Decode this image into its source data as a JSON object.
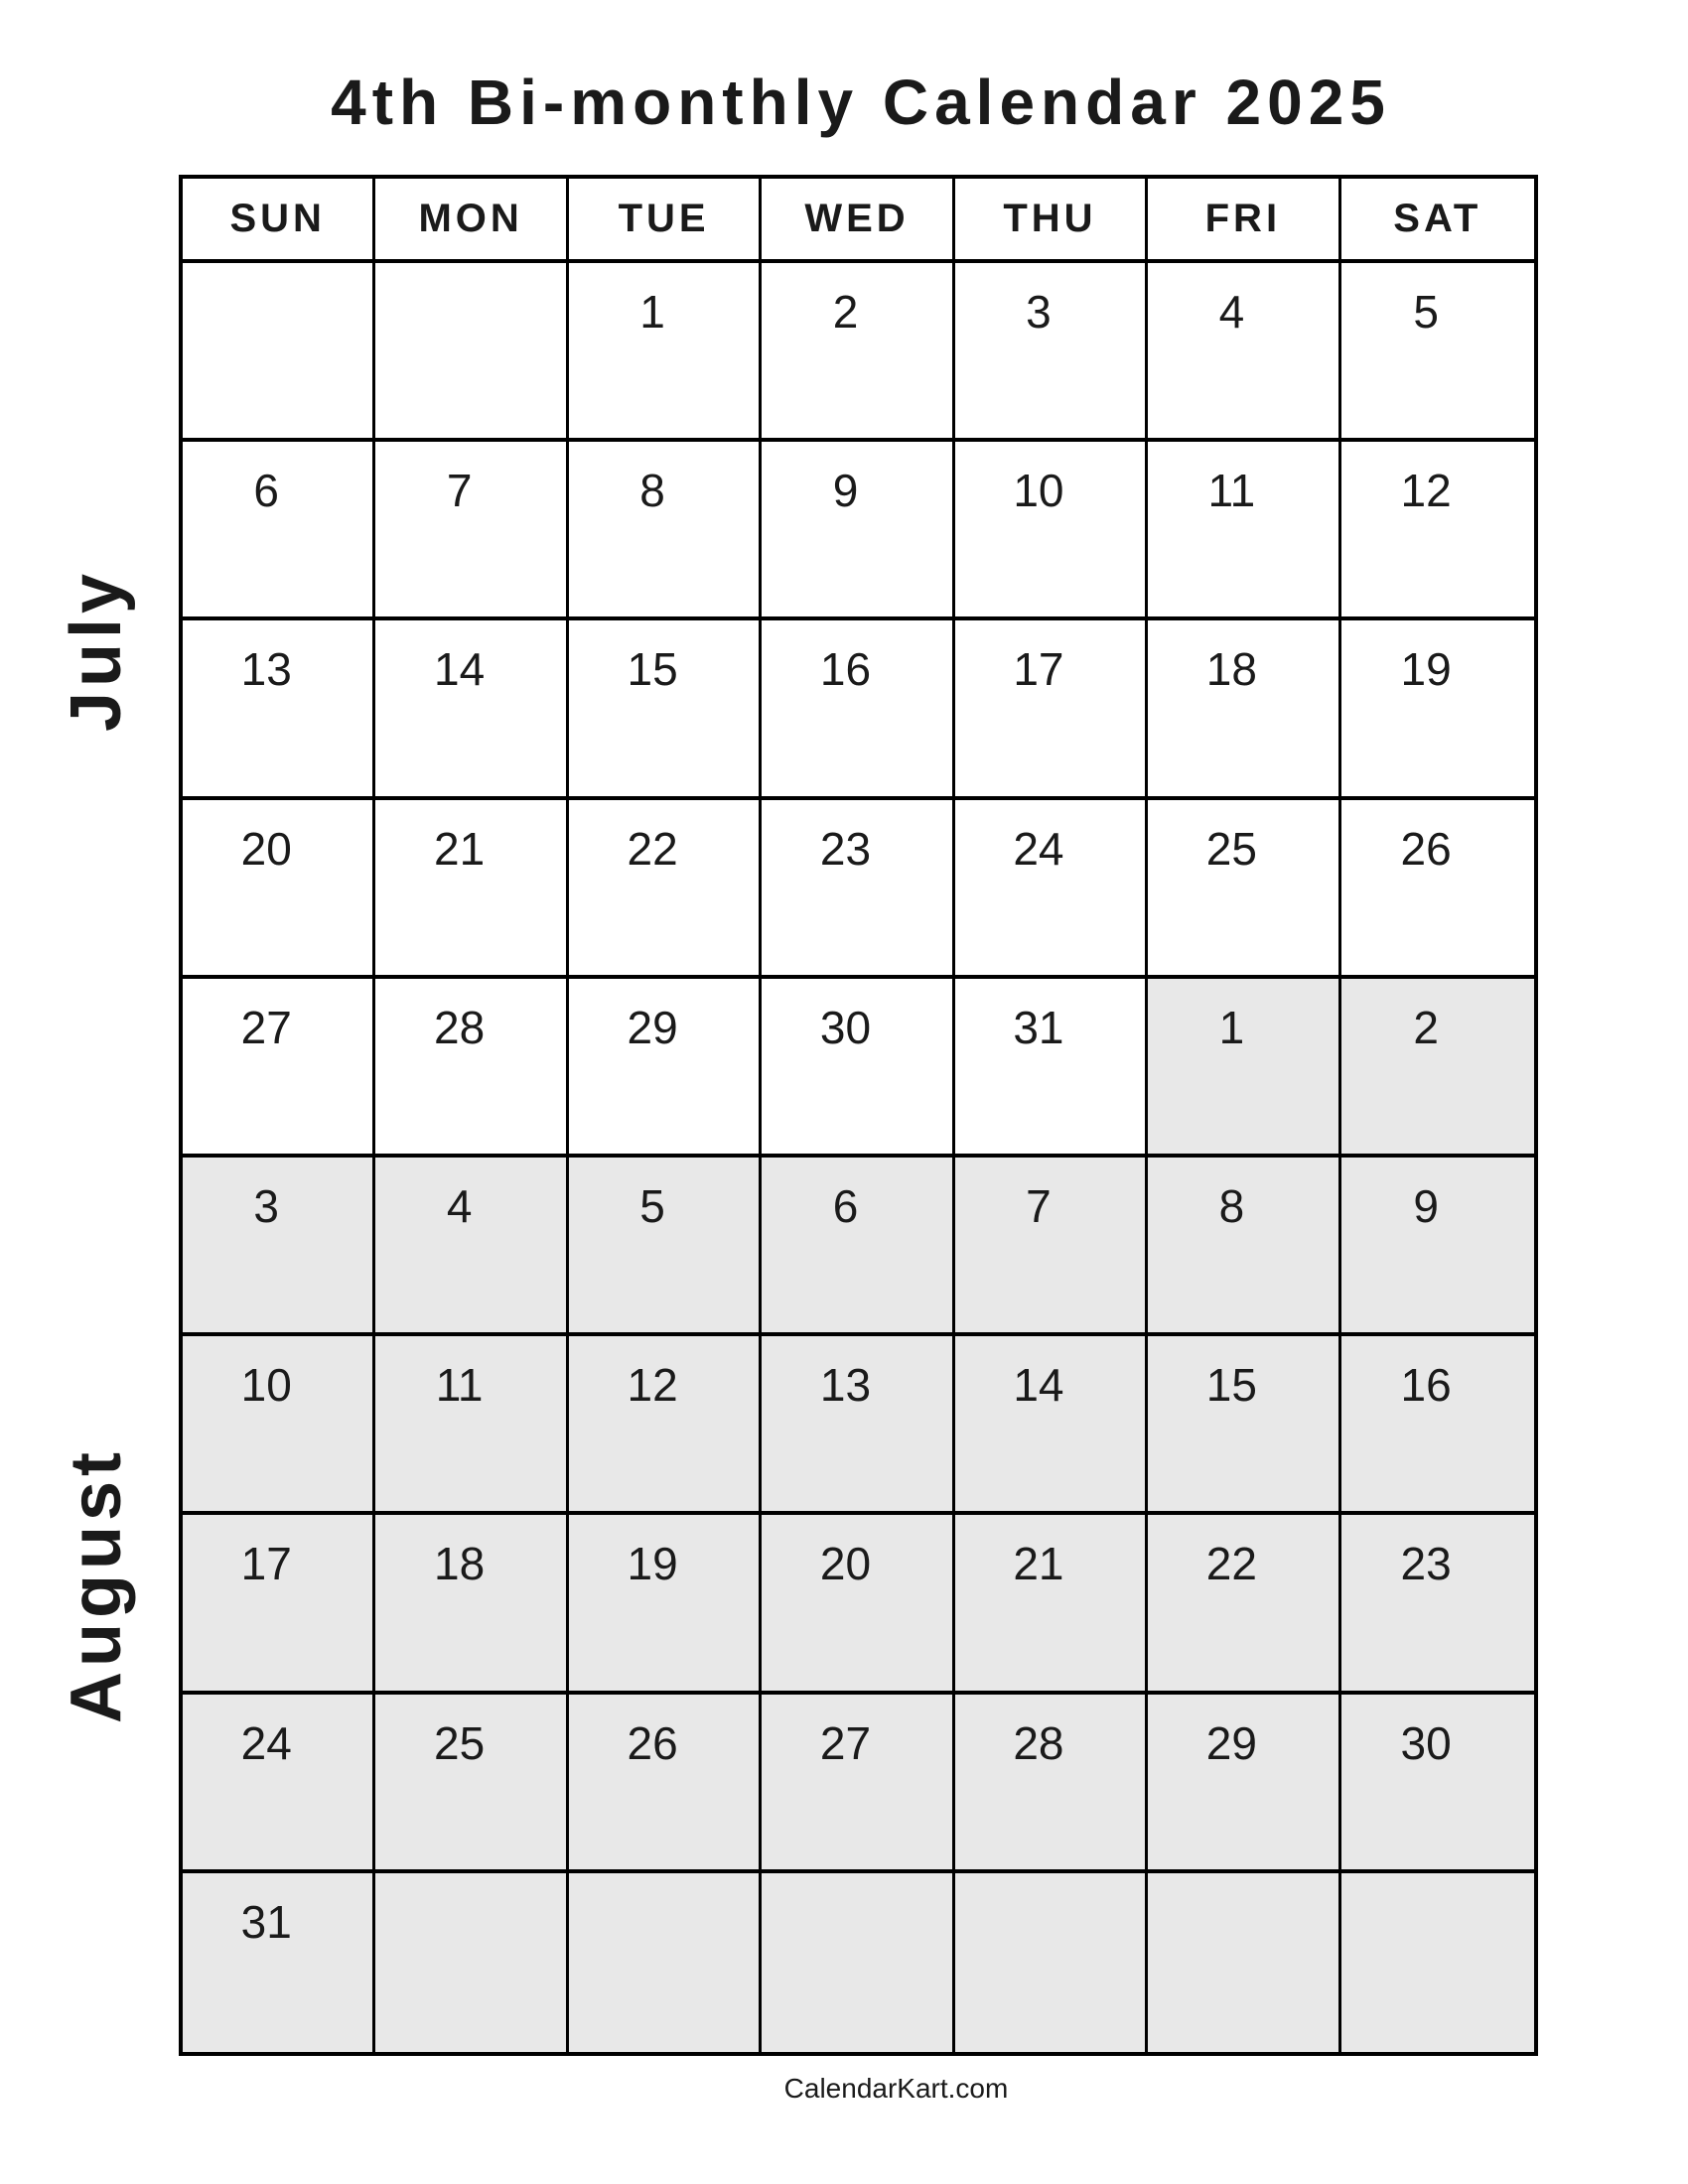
{
  "title": "4th Bi-monthly Calendar 2025",
  "months": [
    "July",
    "August"
  ],
  "weekdays": [
    "SUN",
    "MON",
    "TUE",
    "WED",
    "THU",
    "FRI",
    "SAT"
  ],
  "colors": {
    "july_bg": "#ffffff",
    "august_bg": "#e8e8e8",
    "border": "#000000"
  },
  "weeks": [
    [
      {
        "d": "",
        "m": "jul"
      },
      {
        "d": "",
        "m": "jul"
      },
      {
        "d": "1",
        "m": "jul"
      },
      {
        "d": "2",
        "m": "jul"
      },
      {
        "d": "3",
        "m": "jul"
      },
      {
        "d": "4",
        "m": "jul"
      },
      {
        "d": "5",
        "m": "jul"
      }
    ],
    [
      {
        "d": "6",
        "m": "jul"
      },
      {
        "d": "7",
        "m": "jul"
      },
      {
        "d": "8",
        "m": "jul"
      },
      {
        "d": "9",
        "m": "jul"
      },
      {
        "d": "10",
        "m": "jul"
      },
      {
        "d": "11",
        "m": "jul"
      },
      {
        "d": "12",
        "m": "jul"
      }
    ],
    [
      {
        "d": "13",
        "m": "jul"
      },
      {
        "d": "14",
        "m": "jul"
      },
      {
        "d": "15",
        "m": "jul"
      },
      {
        "d": "16",
        "m": "jul"
      },
      {
        "d": "17",
        "m": "jul"
      },
      {
        "d": "18",
        "m": "jul"
      },
      {
        "d": "19",
        "m": "jul"
      }
    ],
    [
      {
        "d": "20",
        "m": "jul"
      },
      {
        "d": "21",
        "m": "jul"
      },
      {
        "d": "22",
        "m": "jul"
      },
      {
        "d": "23",
        "m": "jul"
      },
      {
        "d": "24",
        "m": "jul"
      },
      {
        "d": "25",
        "m": "jul"
      },
      {
        "d": "26",
        "m": "jul"
      }
    ],
    [
      {
        "d": "27",
        "m": "jul"
      },
      {
        "d": "28",
        "m": "jul"
      },
      {
        "d": "29",
        "m": "jul"
      },
      {
        "d": "30",
        "m": "jul"
      },
      {
        "d": "31",
        "m": "jul"
      },
      {
        "d": "1",
        "m": "aug"
      },
      {
        "d": "2",
        "m": "aug"
      }
    ],
    [
      {
        "d": "3",
        "m": "aug"
      },
      {
        "d": "4",
        "m": "aug"
      },
      {
        "d": "5",
        "m": "aug"
      },
      {
        "d": "6",
        "m": "aug"
      },
      {
        "d": "7",
        "m": "aug"
      },
      {
        "d": "8",
        "m": "aug"
      },
      {
        "d": "9",
        "m": "aug"
      }
    ],
    [
      {
        "d": "10",
        "m": "aug"
      },
      {
        "d": "11",
        "m": "aug"
      },
      {
        "d": "12",
        "m": "aug"
      },
      {
        "d": "13",
        "m": "aug"
      },
      {
        "d": "14",
        "m": "aug"
      },
      {
        "d": "15",
        "m": "aug"
      },
      {
        "d": "16",
        "m": "aug"
      }
    ],
    [
      {
        "d": "17",
        "m": "aug"
      },
      {
        "d": "18",
        "m": "aug"
      },
      {
        "d": "19",
        "m": "aug"
      },
      {
        "d": "20",
        "m": "aug"
      },
      {
        "d": "21",
        "m": "aug"
      },
      {
        "d": "22",
        "m": "aug"
      },
      {
        "d": "23",
        "m": "aug"
      }
    ],
    [
      {
        "d": "24",
        "m": "aug"
      },
      {
        "d": "25",
        "m": "aug"
      },
      {
        "d": "26",
        "m": "aug"
      },
      {
        "d": "27",
        "m": "aug"
      },
      {
        "d": "28",
        "m": "aug"
      },
      {
        "d": "29",
        "m": "aug"
      },
      {
        "d": "30",
        "m": "aug"
      }
    ],
    [
      {
        "d": "31",
        "m": "aug"
      },
      {
        "d": "",
        "m": "aug"
      },
      {
        "d": "",
        "m": "aug"
      },
      {
        "d": "",
        "m": "aug"
      },
      {
        "d": "",
        "m": "aug"
      },
      {
        "d": "",
        "m": "aug"
      },
      {
        "d": "",
        "m": "aug"
      }
    ]
  ],
  "footer": "CalendarKart.com"
}
